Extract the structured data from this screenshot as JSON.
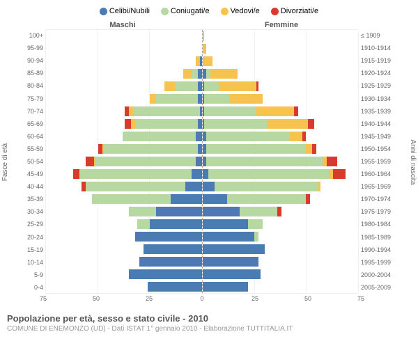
{
  "legend": [
    {
      "label": "Celibi/Nubili",
      "color": "#4a7cb3"
    },
    {
      "label": "Coniugati/e",
      "color": "#b8d8a3"
    },
    {
      "label": "Vedovi/e",
      "color": "#f6c34f"
    },
    {
      "label": "Divorziati/e",
      "color": "#d83a2e"
    }
  ],
  "header_male": "Maschi",
  "header_female": "Femmine",
  "y_left_label": "Fasce di età",
  "y_right_label": "Anni di nascita",
  "title": "Popolazione per età, sesso e stato civile - 2010",
  "subtitle": "COMUNE DI ENEMONZO (UD) - Dati ISTAT 1° gennaio 2010 - Elaborazione TUTTITALIA.IT",
  "x_max": 75,
  "x_ticks": [
    75,
    50,
    25,
    0,
    25,
    50,
    75
  ],
  "age_labels": [
    "100+",
    "95-99",
    "90-94",
    "85-89",
    "80-84",
    "75-79",
    "70-74",
    "65-69",
    "60-64",
    "55-59",
    "50-54",
    "45-49",
    "40-44",
    "35-39",
    "30-34",
    "25-29",
    "20-24",
    "15-19",
    "10-14",
    "5-9",
    "0-4"
  ],
  "birth_labels": [
    "≤ 1909",
    "1910-1914",
    "1915-1919",
    "1920-1924",
    "1925-1929",
    "1930-1934",
    "1935-1939",
    "1940-1944",
    "1945-1949",
    "1950-1954",
    "1955-1959",
    "1960-1964",
    "1965-1969",
    "1970-1974",
    "1975-1979",
    "1980-1984",
    "1985-1989",
    "1990-1994",
    "1995-1999",
    "2000-2004",
    "2005-2009"
  ],
  "colors": {
    "celibi": "#4a7cb3",
    "coniugati": "#b8d8a3",
    "vedovi": "#f6c34f",
    "divorziati": "#d83a2e",
    "grid": "#f0f0f0",
    "background": "#ffffff"
  },
  "data": {
    "male": [
      [
        0,
        0,
        0,
        0
      ],
      [
        0,
        0,
        0,
        0
      ],
      [
        1,
        0,
        2,
        0
      ],
      [
        2,
        3,
        4,
        0
      ],
      [
        2,
        11,
        5,
        0
      ],
      [
        2,
        20,
        3,
        0
      ],
      [
        1,
        32,
        2,
        2
      ],
      [
        2,
        30,
        2,
        3
      ],
      [
        3,
        35,
        0,
        0
      ],
      [
        2,
        45,
        1,
        2
      ],
      [
        3,
        48,
        1,
        4
      ],
      [
        5,
        54,
        0,
        3
      ],
      [
        8,
        48,
        0,
        2
      ],
      [
        15,
        38,
        0,
        0
      ],
      [
        22,
        13,
        0,
        0
      ],
      [
        25,
        6,
        0,
        0
      ],
      [
        32,
        0,
        0,
        0
      ],
      [
        28,
        0,
        0,
        0
      ],
      [
        30,
        0,
        0,
        0
      ],
      [
        35,
        0,
        0,
        0
      ],
      [
        26,
        0,
        0,
        0
      ]
    ],
    "female": [
      [
        0,
        0,
        1,
        0
      ],
      [
        0,
        0,
        2,
        0
      ],
      [
        0,
        0,
        5,
        0
      ],
      [
        2,
        2,
        13,
        0
      ],
      [
        1,
        7,
        18,
        1
      ],
      [
        1,
        12,
        16,
        0
      ],
      [
        1,
        25,
        18,
        2
      ],
      [
        1,
        30,
        20,
        3
      ],
      [
        2,
        40,
        6,
        2
      ],
      [
        2,
        48,
        3,
        2
      ],
      [
        2,
        56,
        2,
        5
      ],
      [
        3,
        58,
        2,
        6
      ],
      [
        6,
        50,
        1,
        0
      ],
      [
        12,
        38,
        0,
        2
      ],
      [
        18,
        18,
        0,
        2
      ],
      [
        22,
        7,
        0,
        0
      ],
      [
        25,
        2,
        0,
        0
      ],
      [
        30,
        0,
        0,
        0
      ],
      [
        27,
        0,
        0,
        0
      ],
      [
        28,
        0,
        0,
        0
      ],
      [
        22,
        0,
        0,
        0
      ]
    ]
  }
}
